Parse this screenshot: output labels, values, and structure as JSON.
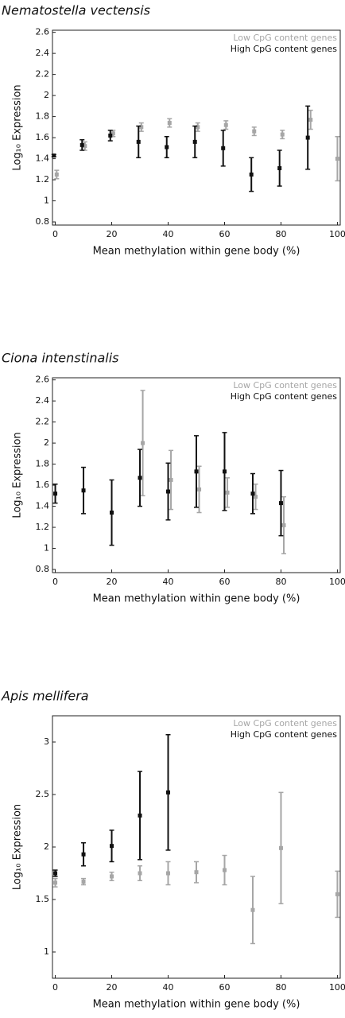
{
  "chart_data": [
    {
      "type": "scatter",
      "title": "Nematostella vectensis",
      "xlabel": "Mean methylation within gene body (%)",
      "ylabel": "Log₁₀ Expression",
      "xlim": [
        -1,
        101
      ],
      "ylim": [
        0.77,
        2.62
      ],
      "xticks": [
        0,
        20,
        40,
        60,
        80,
        100
      ],
      "yticks": [
        0.8,
        1,
        1.2,
        1.4,
        1.6,
        1.8,
        2,
        2.2,
        2.4,
        2.6
      ],
      "legend": "upper right",
      "series": [
        {
          "name": "Low CpG content genes",
          "color": "#a6a6a6",
          "x": [
            0.5,
            10.5,
            20.5,
            30.5,
            40.5,
            50.5,
            60.5,
            70.5,
            80.5,
            90.5,
            100
          ],
          "values": [
            1.25,
            1.52,
            1.64,
            1.7,
            1.74,
            1.7,
            1.72,
            1.66,
            1.63,
            1.77,
            1.4
          ],
          "errors": [
            0.04,
            0.04,
            0.03,
            0.04,
            0.04,
            0.04,
            0.04,
            0.04,
            0.04,
            0.09,
            0.21
          ]
        },
        {
          "name": "High CpG content genes",
          "color": "#111111",
          "x": [
            -0.5,
            9.5,
            19.5,
            29.5,
            39.5,
            49.5,
            59.5,
            69.5,
            79.5,
            89.5
          ],
          "values": [
            1.43,
            1.53,
            1.62,
            1.56,
            1.51,
            1.56,
            1.5,
            1.25,
            1.31,
            1.6
          ],
          "errors": [
            0.01,
            0.05,
            0.05,
            0.15,
            0.1,
            0.15,
            0.17,
            0.16,
            0.17,
            0.3
          ]
        }
      ]
    },
    {
      "type": "scatter",
      "title": "Ciona intenstinalis",
      "xlabel": "Mean methylation within gene body (%)",
      "ylabel": "Log₁₀ Expression",
      "xlim": [
        -1,
        101
      ],
      "ylim": [
        0.77,
        2.62
      ],
      "xticks": [
        0,
        20,
        40,
        60,
        80,
        100
      ],
      "yticks": [
        0.8,
        1,
        1.2,
        1.4,
        1.6,
        1.8,
        2,
        2.2,
        2.4,
        2.6
      ],
      "legend": "upper right",
      "series": [
        {
          "name": "Low CpG content genes",
          "color": "#a6a6a6",
          "x": [
            31,
            41,
            51,
            61,
            71,
            81
          ],
          "values": [
            2.0,
            1.65,
            1.56,
            1.53,
            1.49,
            1.22
          ],
          "errors": [
            0.5,
            0.28,
            0.22,
            0.14,
            0.12,
            0.27
          ]
        },
        {
          "name": "High CpG content genes",
          "color": "#111111",
          "x": [
            0,
            10,
            20,
            30,
            40,
            50,
            60,
            70,
            80
          ],
          "values": [
            1.52,
            1.55,
            1.34,
            1.67,
            1.54,
            1.73,
            1.73,
            1.52,
            1.43
          ],
          "errors": [
            0.09,
            0.22,
            0.31,
            0.27,
            0.27,
            0.34,
            0.37,
            0.19,
            0.31
          ]
        }
      ]
    },
    {
      "type": "scatter",
      "title": "Apis mellifera",
      "xlabel": "Mean methylation within gene body (%)",
      "ylabel": "Log₁₀ Expression",
      "xlim": [
        -1,
        101
      ],
      "ylim": [
        0.75,
        3.25
      ],
      "xticks": [
        0,
        20,
        40,
        60,
        80,
        100
      ],
      "yticks": [
        1,
        1.5,
        2,
        2.5,
        3
      ],
      "legend": "upper right",
      "series": [
        {
          "name": "Low CpG content genes",
          "color": "#a6a6a6",
          "x": [
            0,
            10,
            20,
            30,
            40,
            50,
            60,
            70,
            80,
            100
          ],
          "values": [
            1.66,
            1.67,
            1.72,
            1.75,
            1.75,
            1.76,
            1.78,
            1.4,
            1.99,
            1.55
          ],
          "errors": [
            0.04,
            0.03,
            0.04,
            0.07,
            0.11,
            0.1,
            0.14,
            0.32,
            0.53,
            0.22
          ]
        },
        {
          "name": "High CpG content genes",
          "color": "#111111",
          "x": [
            0,
            10,
            20,
            30,
            40
          ],
          "values": [
            1.75,
            1.93,
            2.01,
            2.3,
            2.52
          ],
          "errors": [
            0.03,
            0.11,
            0.15,
            0.42,
            0.55
          ]
        }
      ]
    }
  ]
}
